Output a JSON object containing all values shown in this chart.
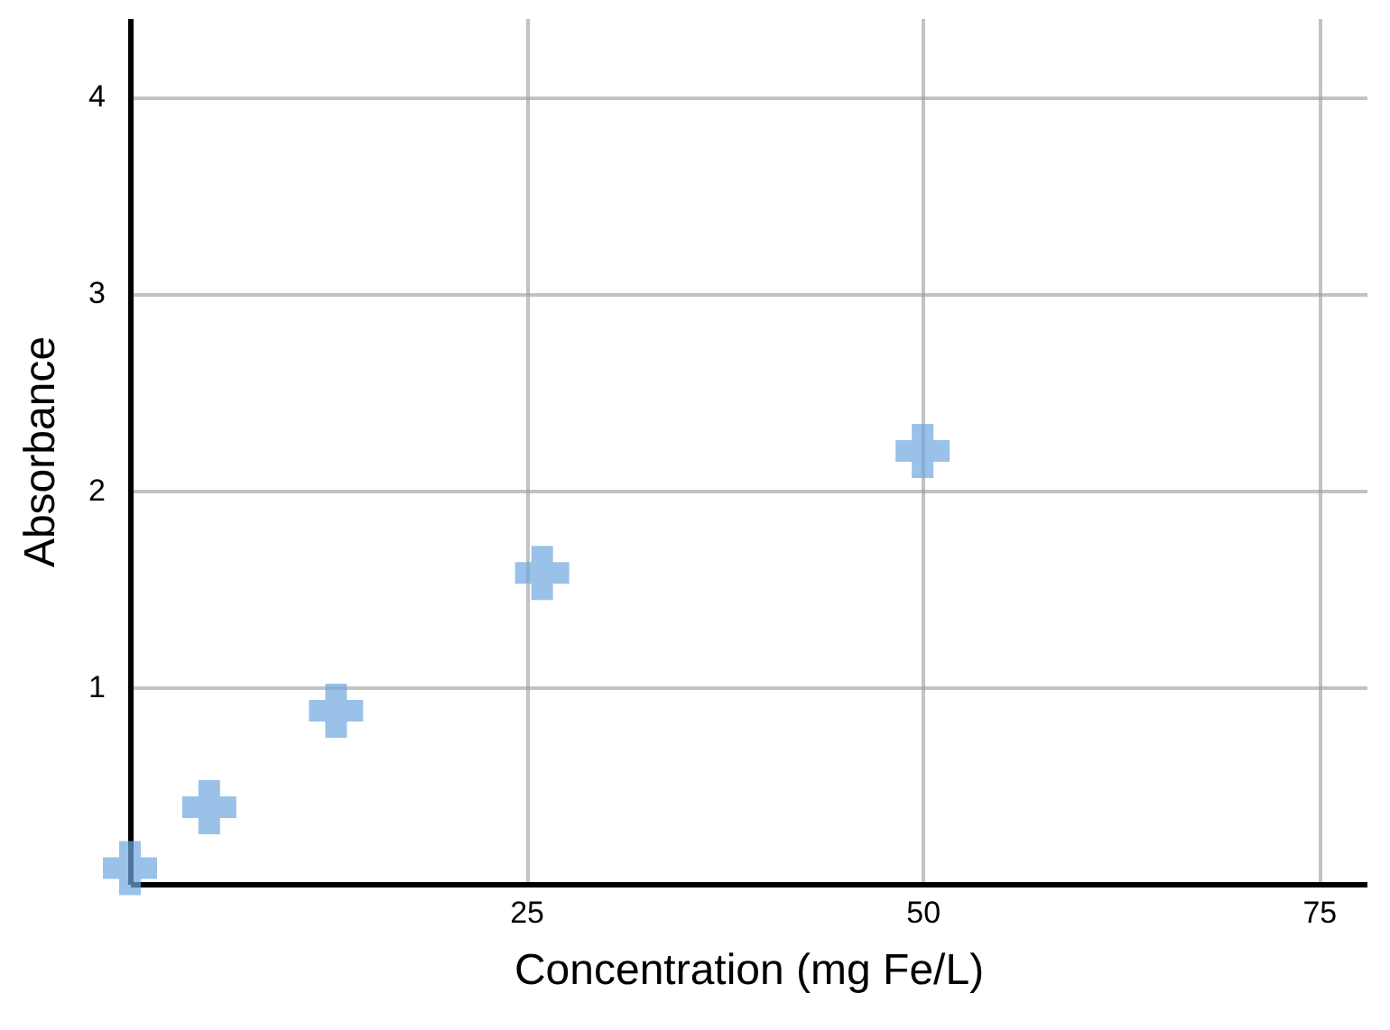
{
  "chart_data": {
    "type": "scatter",
    "xlabel": "Concentration (mg Fe/L)",
    "ylabel": "Absorbance",
    "x": [
      0,
      5,
      13,
      26,
      50
    ],
    "series": [
      {
        "color": "#6fa8e0",
        "values": [
          0.08,
          0.39,
          0.88,
          1.58,
          2.2
        ]
      }
    ],
    "xlim": [
      0,
      78
    ],
    "xticks": [
      25,
      50,
      75
    ],
    "ylim": [
      0,
      4.4
    ],
    "yticks": [
      1,
      2,
      3,
      4
    ],
    "grid": true,
    "marker": "cross"
  }
}
